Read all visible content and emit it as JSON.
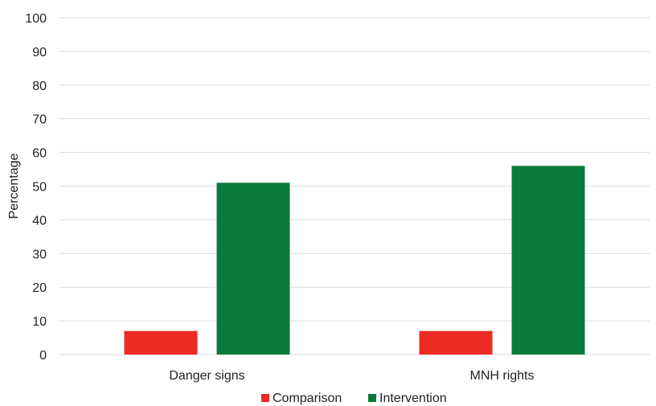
{
  "chart_data": {
    "type": "bar",
    "title": "",
    "xlabel": "",
    "ylabel": "Percentage",
    "categories": [
      "Danger signs",
      "MNH rights"
    ],
    "series": [
      {
        "name": "Comparison",
        "values": [
          7,
          7
        ],
        "color": "#ee2a24"
      },
      {
        "name": "Intervention",
        "values": [
          51,
          56
        ],
        "color": "#077a3c"
      }
    ],
    "ylim": [
      0,
      100
    ],
    "yticks": [
      0,
      10,
      20,
      30,
      40,
      50,
      60,
      70,
      80,
      90,
      100
    ],
    "grid": true,
    "gridColor": "#d9d9d9",
    "legend": "bottom-center"
  }
}
